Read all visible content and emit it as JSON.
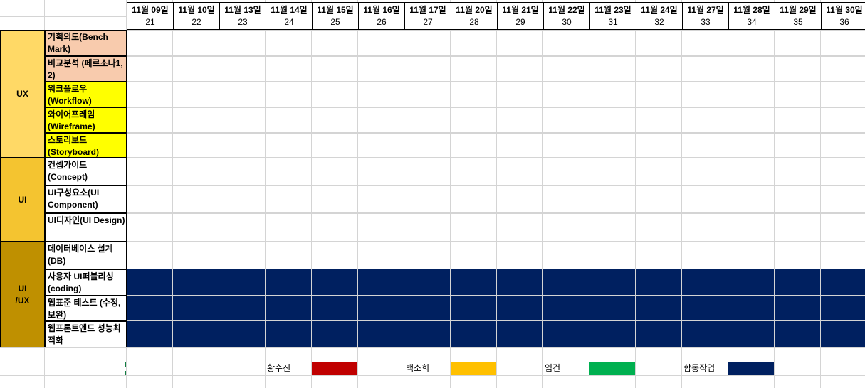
{
  "dates": [
    "11월 09일",
    "11월 10일",
    "11월 13일",
    "11월 14일",
    "11월 15일",
    "11월 16일",
    "11월 17일",
    "11월 20일",
    "11월 21일",
    "11월 22일",
    "11월 23일",
    "11월 24일",
    "11월 27일",
    "11월 28일",
    "11월 29일",
    "11월 30일"
  ],
  "numbers": [
    "21",
    "22",
    "23",
    "24",
    "25",
    "26",
    "27",
    "28",
    "29",
    "30",
    "31",
    "32",
    "33",
    "34",
    "35",
    "36"
  ],
  "categories": [
    {
      "label": "UX",
      "color": "#ffd966"
    },
    {
      "label": "UI",
      "color": "#f4c430"
    },
    {
      "label": "UI\n/UX",
      "color": "#bf9000"
    }
  ],
  "tasks": [
    {
      "label": "기획의도(Bench Mark)",
      "color": "#f8cbad",
      "filled": false
    },
    {
      "label": "비교분석 (페르소나1, 2)",
      "color": "#f8cbad",
      "filled": false
    },
    {
      "label": "워크플로우 (Workflow)",
      "color": "#ffff00",
      "filled": false
    },
    {
      "label": "와이어프레임 (Wireframe)",
      "color": "#ffff00",
      "filled": false
    },
    {
      "label": "스토리보드 (Storyboard)",
      "color": "#ffff00",
      "filled": false
    },
    {
      "label": "컨셉가이드 (Concept)",
      "color": "#ffffff",
      "filled": false
    },
    {
      "label": "UI구성요소(UI Component)",
      "color": "#ffffff",
      "filled": false
    },
    {
      "label": "UI디자인(UI Design)",
      "color": "#ffffff",
      "filled": false
    },
    {
      "label": "데이터베이스 설계 (DB)",
      "color": "#ffffff",
      "filled": false
    },
    {
      "label": "사용자 UI퍼블리싱 (coding)",
      "color": "#ffffff",
      "filled": true
    },
    {
      "label": "웹표준 테스트 (수정, 보완)",
      "color": "#ffffff",
      "filled": true
    },
    {
      "label": "웹프론트엔드 성능최적화",
      "color": "#ffffff",
      "filled": true
    }
  ],
  "legend": [
    {
      "name": "황수진",
      "color": "#c00000"
    },
    {
      "name": "백소희",
      "color": "#ffc000"
    },
    {
      "name": "임건",
      "color": "#00b050"
    },
    {
      "name": "합동작업",
      "color": "#002060"
    }
  ],
  "fill_color": "#002060"
}
